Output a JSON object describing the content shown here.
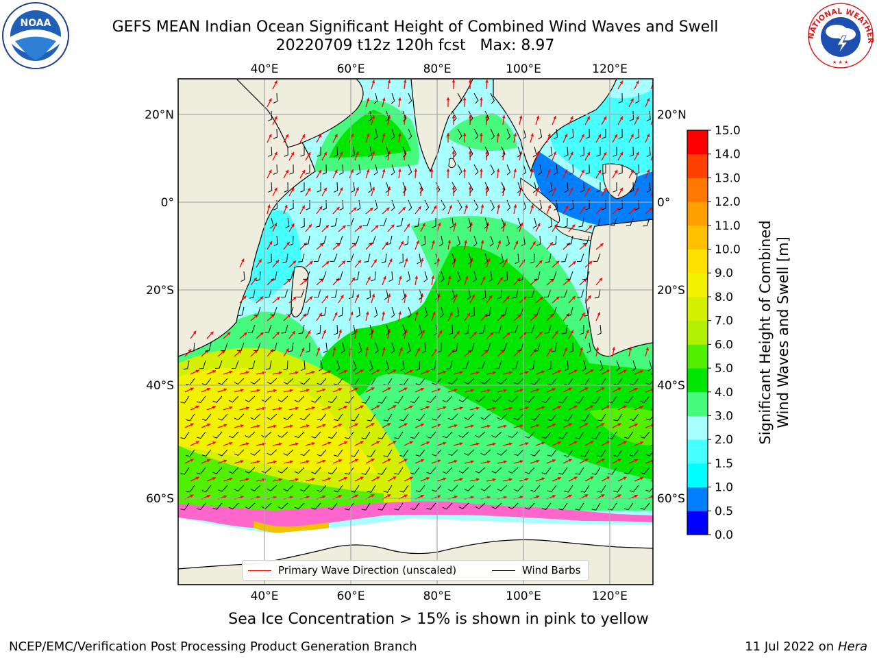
{
  "title": {
    "line1": "GEFS MEAN Indian Ocean Significant Height of Combined Wind Waves and Swell",
    "line2": "20220709 t12z 120h fcst   Max: 8.97"
  },
  "logos": {
    "left": {
      "name": "noaa-logo",
      "text": "NOAA",
      "ring_text": "NATIONAL OCEANIC AND ATMOSPHERIC ADMINISTRATION · U.S. DEPARTMENT OF COMMERCE"
    },
    "right": {
      "name": "nws-logo",
      "ring_text": "NATIONAL WEATHER SERVICE"
    }
  },
  "map": {
    "type": "map",
    "lon_range": [
      20,
      130
    ],
    "lat_range": [
      -75,
      27
    ],
    "grid": true,
    "top_lon_labels": [
      "40°E",
      "60°E",
      "80°E",
      "100°E",
      "120°E"
    ],
    "bottom_lon_labels": [
      "40°E",
      "60°E",
      "80°E",
      "100°E",
      "120°E"
    ],
    "lat_labels_left": [
      "20°N",
      "0°",
      "20°S",
      "40°S",
      "60°S"
    ],
    "lat_labels_right": [
      "20°N",
      "0°",
      "20°S",
      "40°S",
      "60°S"
    ],
    "land_color": "#efeddd",
    "max_value": 8.97
  },
  "colorbar": {
    "title_line1": "Significant Height of Combined",
    "title_line2": "Wind Waves and Swell [m]",
    "levels": [
      "0.0",
      "0.5",
      "1.0",
      "1.5",
      "2.0",
      "3.0",
      "4.0",
      "5.0",
      "6.0",
      "7.0",
      "8.0",
      "9.0",
      "10.0",
      "11.0",
      "12.0",
      "13.0",
      "14.0",
      "15.0"
    ],
    "colors": [
      "#0000ff",
      "#0080ff",
      "#00ffff",
      "#46ffff",
      "#a8ffff",
      "#46fa7d",
      "#00e600",
      "#50f000",
      "#b0f000",
      "#d2f000",
      "#f2f200",
      "#ffe100",
      "#ffc000",
      "#ffa000",
      "#ff7800",
      "#ff4000",
      "#ff0000"
    ]
  },
  "legend": {
    "wave_label": "Primary Wave Direction (unscaled)",
    "wind_label": "Wind Barbs"
  },
  "caption": "Sea Ice Concentration > 15% is shown in pink to yellow",
  "footer": {
    "left": "NCEP/EMC/Verification Post Processing Product Generation Branch",
    "right_date": "11 Jul 2022 on",
    "right_machine": "Hera"
  }
}
